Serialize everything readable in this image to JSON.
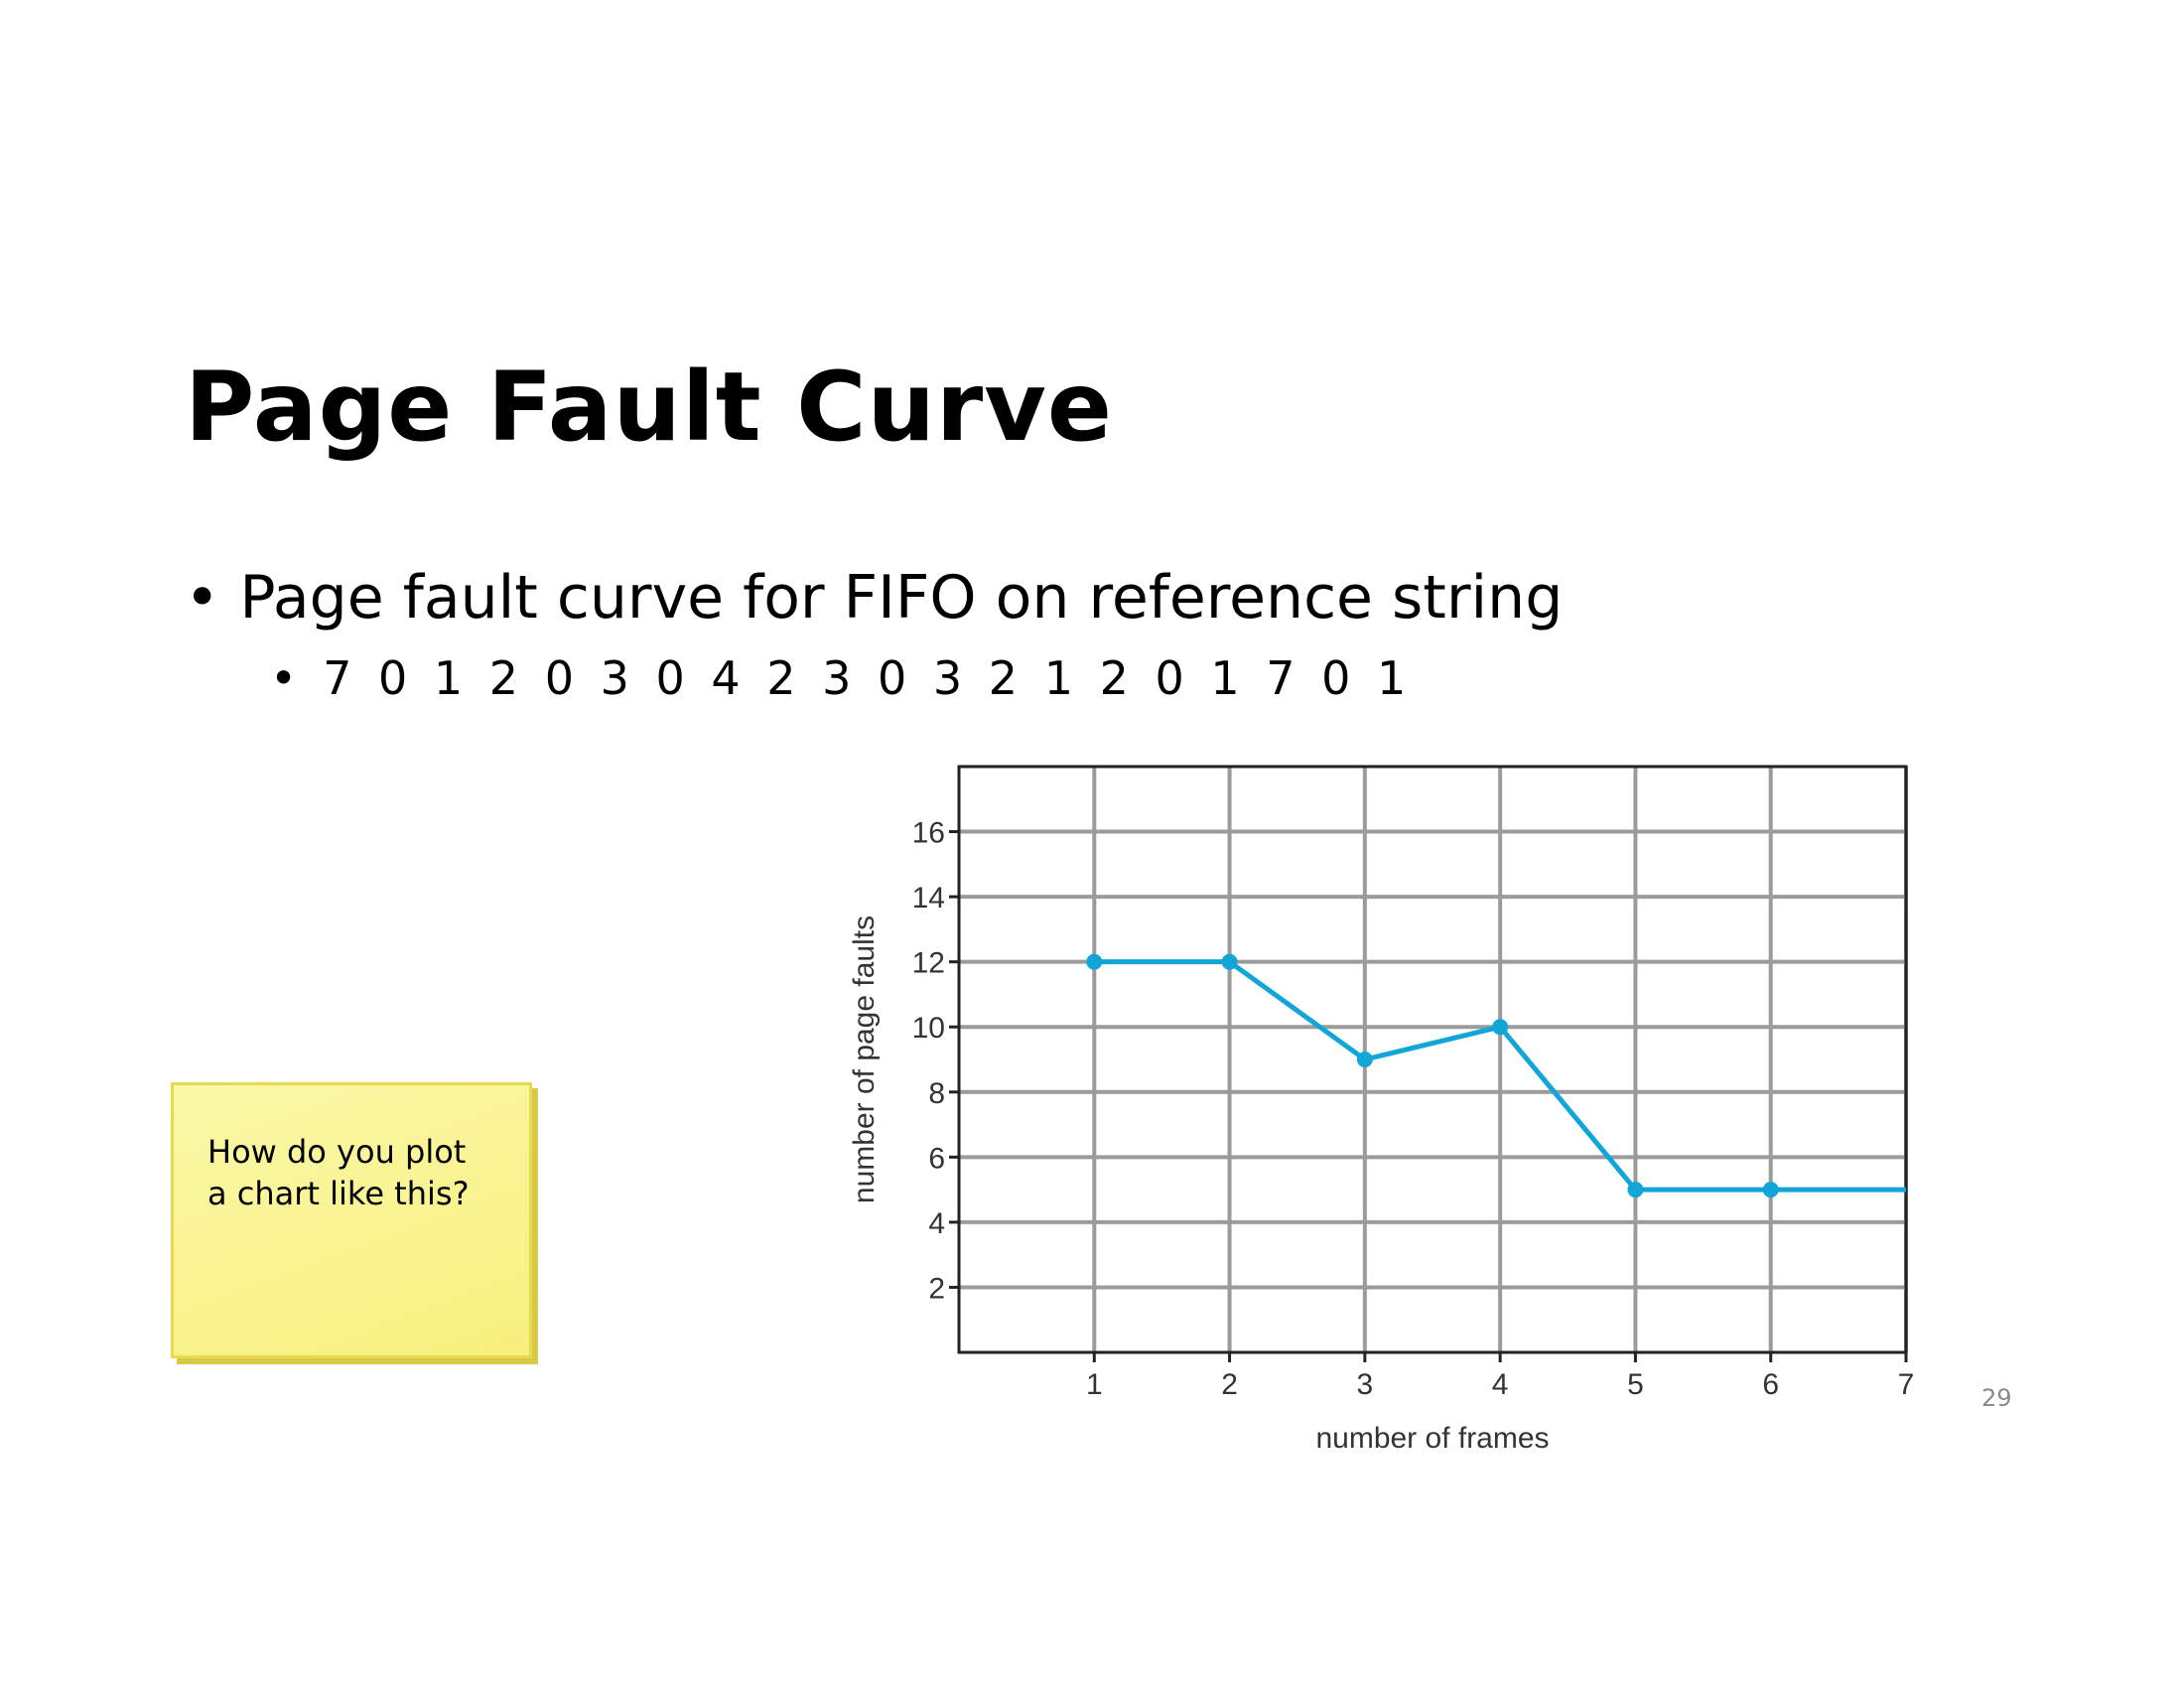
{
  "slide": {
    "title": "Page Fault Curve",
    "bullet_1": "Page fault curve for FIFO on reference string",
    "bullet_2": "7 0 1 2 0 3 0 4 2 3 0 3 2 1 2 0 1 7 0 1",
    "page_number": "29"
  },
  "sticky_note": {
    "text": "How do you plot\na chart like this?",
    "color": "#f9f58e"
  },
  "chart_data": {
    "type": "line",
    "x": [
      1,
      2,
      3,
      4,
      5,
      6,
      7
    ],
    "series": [
      {
        "values": [
          12,
          12,
          9,
          10,
          5,
          5,
          5
        ],
        "color": "#12a6d8"
      }
    ],
    "xlabel": "number of frames",
    "ylabel": "number of page faults",
    "xlim": [
      0,
      7
    ],
    "ylim": [
      0,
      18
    ],
    "xticks": [
      1,
      2,
      3,
      4,
      5,
      6,
      7
    ],
    "yticks": [
      2,
      4,
      6,
      8,
      10,
      12,
      14,
      16
    ],
    "grid": true,
    "grid_color": "#9b9b9b"
  }
}
